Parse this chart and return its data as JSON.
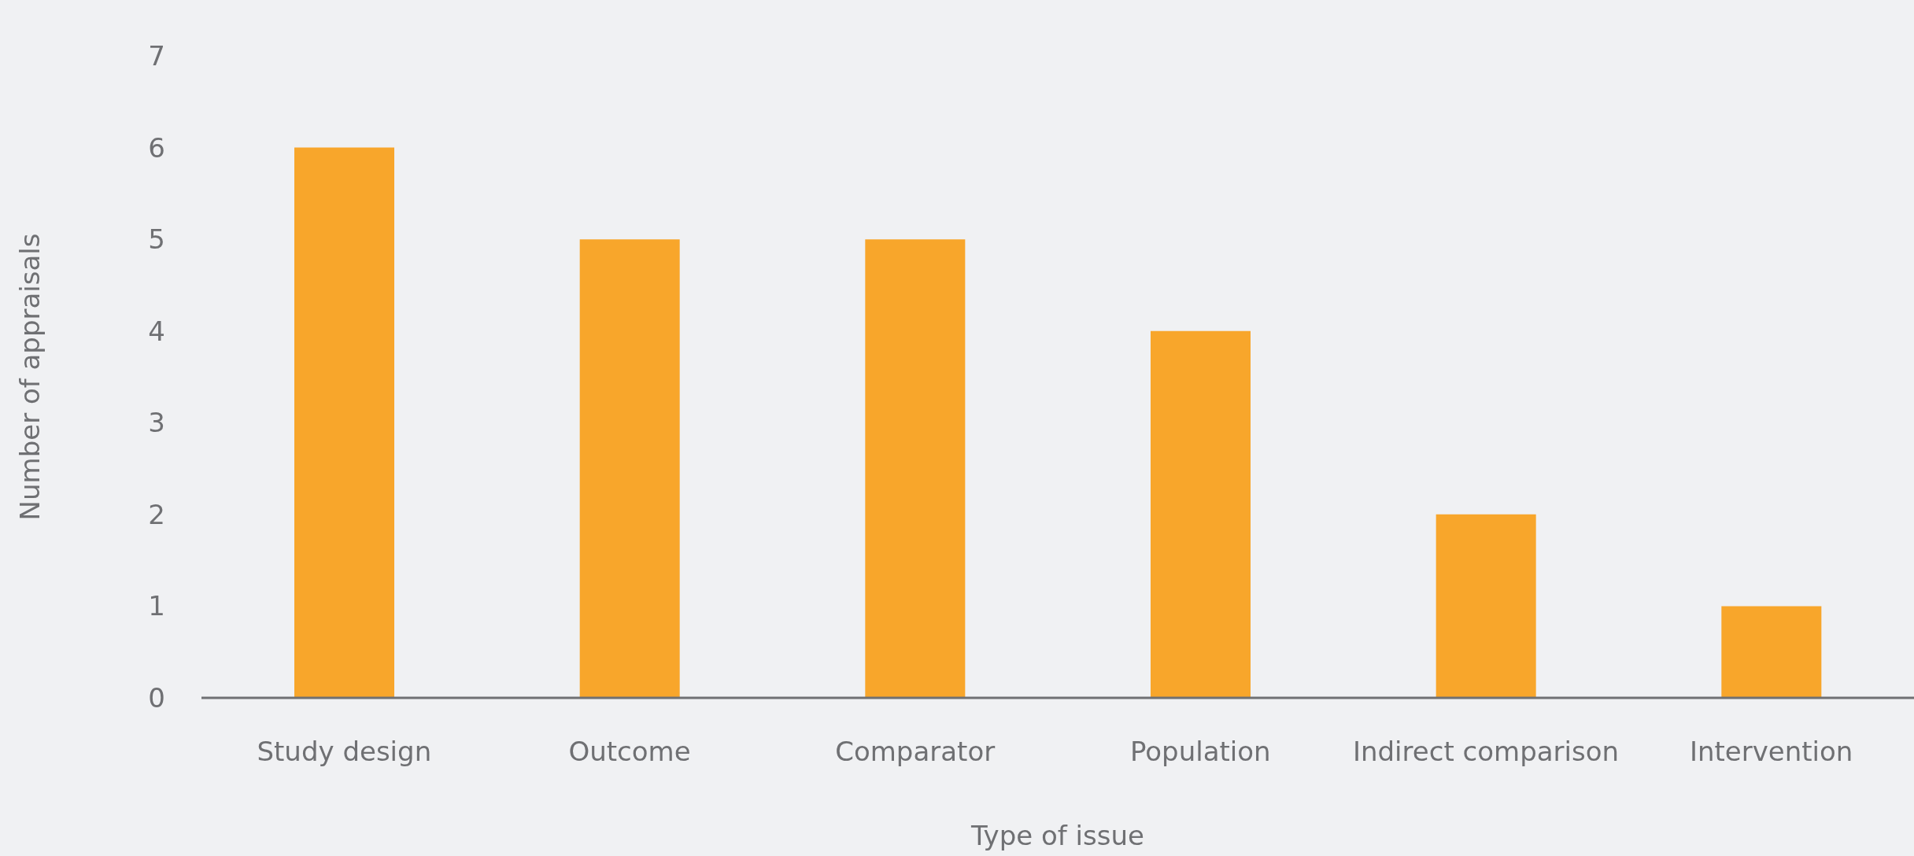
{
  "chart_data": {
    "type": "bar",
    "xlabel": "Type of issue",
    "ylabel": "Number of appraisals",
    "categories": [
      "Study design",
      "Outcome",
      "Comparator",
      "Population",
      "Indirect comparison",
      "Intervention"
    ],
    "values": [
      6,
      5,
      5,
      4,
      2,
      1
    ],
    "color": "#f8a62b",
    "ylim": [
      0,
      7
    ],
    "yticks": [
      0,
      1,
      2,
      3,
      4,
      5,
      6,
      7
    ],
    "grid": false,
    "legend": false
  }
}
